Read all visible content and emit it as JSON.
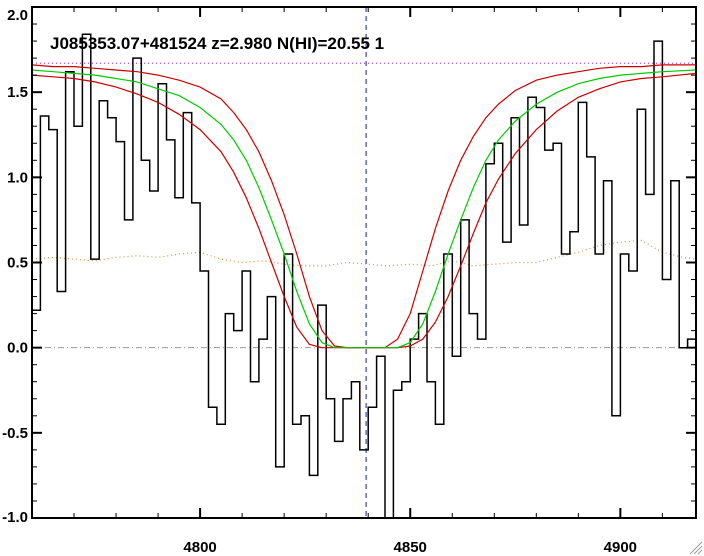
{
  "chart_data": {
    "type": "line",
    "title": "J085353.07+481524 z=2.980 N(HI)=20.55 1",
    "xlabel": "",
    "ylabel": "",
    "xlim": [
      4760,
      4918
    ],
    "ylim": [
      -1.0,
      2.0
    ],
    "x_ticks": [
      4800,
      4850,
      4900
    ],
    "x_tick_labels": [
      "4800",
      "4850",
      "4900"
    ],
    "y_ticks": [
      -1.0,
      -0.5,
      0.0,
      0.5,
      1.0,
      1.5,
      2.0
    ],
    "y_tick_labels": [
      "-1.0",
      "-0.5",
      "0.0",
      "0.5",
      "1.0",
      "1.5",
      "2.0"
    ],
    "grid": false,
    "legend": "none",
    "center_line_x": 4839.5,
    "continuum_level": 1.67,
    "zero_level": 0.0,
    "colors": {
      "flux": "#000000",
      "model": "#00cc00",
      "model_bounds": "#cc0000",
      "error": "#e08a40",
      "continuum": "#9933cc",
      "center_line": "#1a1aa0",
      "zero_line": "#999999"
    },
    "series": [
      {
        "key": "flux",
        "style": "step",
        "x": [
          4760,
          4762,
          4764,
          4766,
          4768,
          4770,
          4772,
          4774,
          4776,
          4778,
          4780,
          4782,
          4784,
          4786,
          4788,
          4790,
          4792,
          4794,
          4796,
          4798,
          4800,
          4802,
          4804,
          4806,
          4808,
          4810,
          4812,
          4814,
          4816,
          4818,
          4820,
          4822,
          4824,
          4826,
          4828,
          4830,
          4832,
          4834,
          4836,
          4838,
          4840,
          4842,
          4844,
          4846,
          4848,
          4850,
          4852,
          4854,
          4856,
          4858,
          4860,
          4862,
          4864,
          4866,
          4868,
          4870,
          4872,
          4874,
          4876,
          4878,
          4880,
          4882,
          4884,
          4886,
          4888,
          4890,
          4892,
          4894,
          4896,
          4898,
          4900,
          4902,
          4904,
          4906,
          4908,
          4910,
          4912,
          4914,
          4916,
          4918
        ],
        "y": [
          0.22,
          1.36,
          1.28,
          0.33,
          1.62,
          1.3,
          1.84,
          0.52,
          1.45,
          1.35,
          1.21,
          0.75,
          1.7,
          1.1,
          0.92,
          1.55,
          1.22,
          0.88,
          1.38,
          0.85,
          0.45,
          -0.35,
          -0.45,
          0.2,
          0.1,
          0.45,
          -0.2,
          0.05,
          0.3,
          -0.7,
          0.55,
          -0.45,
          -0.4,
          -0.75,
          0.25,
          -0.3,
          -0.55,
          -0.3,
          -0.2,
          -0.6,
          -0.35,
          -0.05,
          -1.0,
          -0.25,
          -0.2,
          0.05,
          0.2,
          -0.2,
          -0.45,
          0.55,
          -0.05,
          0.75,
          0.2,
          0.05,
          1.08,
          1.2,
          0.62,
          1.35,
          0.72,
          1.47,
          1.41,
          1.16,
          1.2,
          0.55,
          0.68,
          1.44,
          1.12,
          0.55,
          0.98,
          -0.4,
          0.55,
          0.45,
          1.4,
          0.9,
          1.8,
          0.4,
          0.98,
          0.0,
          0.05,
          1.2
        ]
      },
      {
        "key": "model",
        "style": "line",
        "x": [
          4760,
          4765,
          4770,
          4775,
          4780,
          4785,
          4790,
          4795,
          4800,
          4805,
          4808,
          4811,
          4814,
          4817,
          4820,
          4823,
          4826,
          4829,
          4832,
          4835,
          4838,
          4841,
          4844,
          4847,
          4850,
          4853,
          4856,
          4859,
          4862,
          4865,
          4868,
          4871,
          4875,
          4880,
          4885,
          4890,
          4895,
          4900,
          4905,
          4910,
          4918
        ],
        "y": [
          1.63,
          1.62,
          1.61,
          1.6,
          1.58,
          1.56,
          1.52,
          1.48,
          1.41,
          1.31,
          1.22,
          1.1,
          0.94,
          0.75,
          0.55,
          0.33,
          0.14,
          0.03,
          0.0,
          0.0,
          0.0,
          0.0,
          0.0,
          0.0,
          0.03,
          0.14,
          0.33,
          0.55,
          0.75,
          0.94,
          1.1,
          1.22,
          1.33,
          1.43,
          1.5,
          1.55,
          1.58,
          1.6,
          1.61,
          1.62,
          1.63
        ]
      },
      {
        "key": "model_upper",
        "style": "line",
        "x": [
          4760,
          4765,
          4770,
          4775,
          4780,
          4785,
          4790,
          4795,
          4800,
          4805,
          4808,
          4811,
          4814,
          4817,
          4820,
          4823,
          4826,
          4829,
          4832,
          4835,
          4838,
          4841,
          4844,
          4847,
          4850,
          4853,
          4856,
          4859,
          4862,
          4865,
          4868,
          4871,
          4875,
          4880,
          4885,
          4890,
          4895,
          4900,
          4905,
          4910,
          4918
        ],
        "y": [
          1.66,
          1.65,
          1.65,
          1.64,
          1.63,
          1.62,
          1.6,
          1.57,
          1.53,
          1.46,
          1.38,
          1.28,
          1.15,
          0.98,
          0.78,
          0.55,
          0.3,
          0.1,
          0.01,
          0.0,
          0.0,
          0.0,
          0.0,
          0.05,
          0.2,
          0.45,
          0.7,
          0.92,
          1.1,
          1.24,
          1.35,
          1.43,
          1.51,
          1.57,
          1.6,
          1.62,
          1.64,
          1.65,
          1.65,
          1.66,
          1.66
        ]
      },
      {
        "key": "model_lower",
        "style": "line",
        "x": [
          4760,
          4765,
          4770,
          4775,
          4780,
          4785,
          4790,
          4795,
          4800,
          4805,
          4808,
          4811,
          4814,
          4817,
          4820,
          4823,
          4826,
          4829,
          4832,
          4835,
          4838,
          4841,
          4844,
          4847,
          4850,
          4853,
          4856,
          4859,
          4862,
          4865,
          4868,
          4871,
          4875,
          4880,
          4885,
          4890,
          4895,
          4900,
          4905,
          4910,
          4918
        ],
        "y": [
          1.6,
          1.59,
          1.58,
          1.56,
          1.53,
          1.49,
          1.44,
          1.37,
          1.28,
          1.15,
          1.03,
          0.88,
          0.7,
          0.5,
          0.3,
          0.12,
          0.02,
          0.0,
          0.0,
          0.0,
          0.0,
          0.0,
          0.0,
          0.0,
          0.01,
          0.05,
          0.15,
          0.3,
          0.48,
          0.67,
          0.85,
          0.99,
          1.14,
          1.28,
          1.39,
          1.47,
          1.52,
          1.56,
          1.58,
          1.59,
          1.61
        ]
      },
      {
        "key": "error",
        "style": "dotted",
        "x": [
          4760,
          4765,
          4770,
          4775,
          4780,
          4785,
          4790,
          4795,
          4800,
          4805,
          4810,
          4815,
          4820,
          4825,
          4830,
          4835,
          4840,
          4845,
          4850,
          4855,
          4860,
          4865,
          4870,
          4875,
          4880,
          4885,
          4890,
          4895,
          4900,
          4905,
          4910,
          4915,
          4918
        ],
        "y": [
          0.52,
          0.53,
          0.52,
          0.51,
          0.53,
          0.54,
          0.53,
          0.55,
          0.56,
          0.52,
          0.5,
          0.51,
          0.49,
          0.48,
          0.48,
          0.5,
          0.49,
          0.48,
          0.49,
          0.48,
          0.51,
          0.48,
          0.49,
          0.5,
          0.5,
          0.53,
          0.56,
          0.6,
          0.62,
          0.63,
          0.56,
          0.53,
          0.52
        ]
      }
    ]
  }
}
